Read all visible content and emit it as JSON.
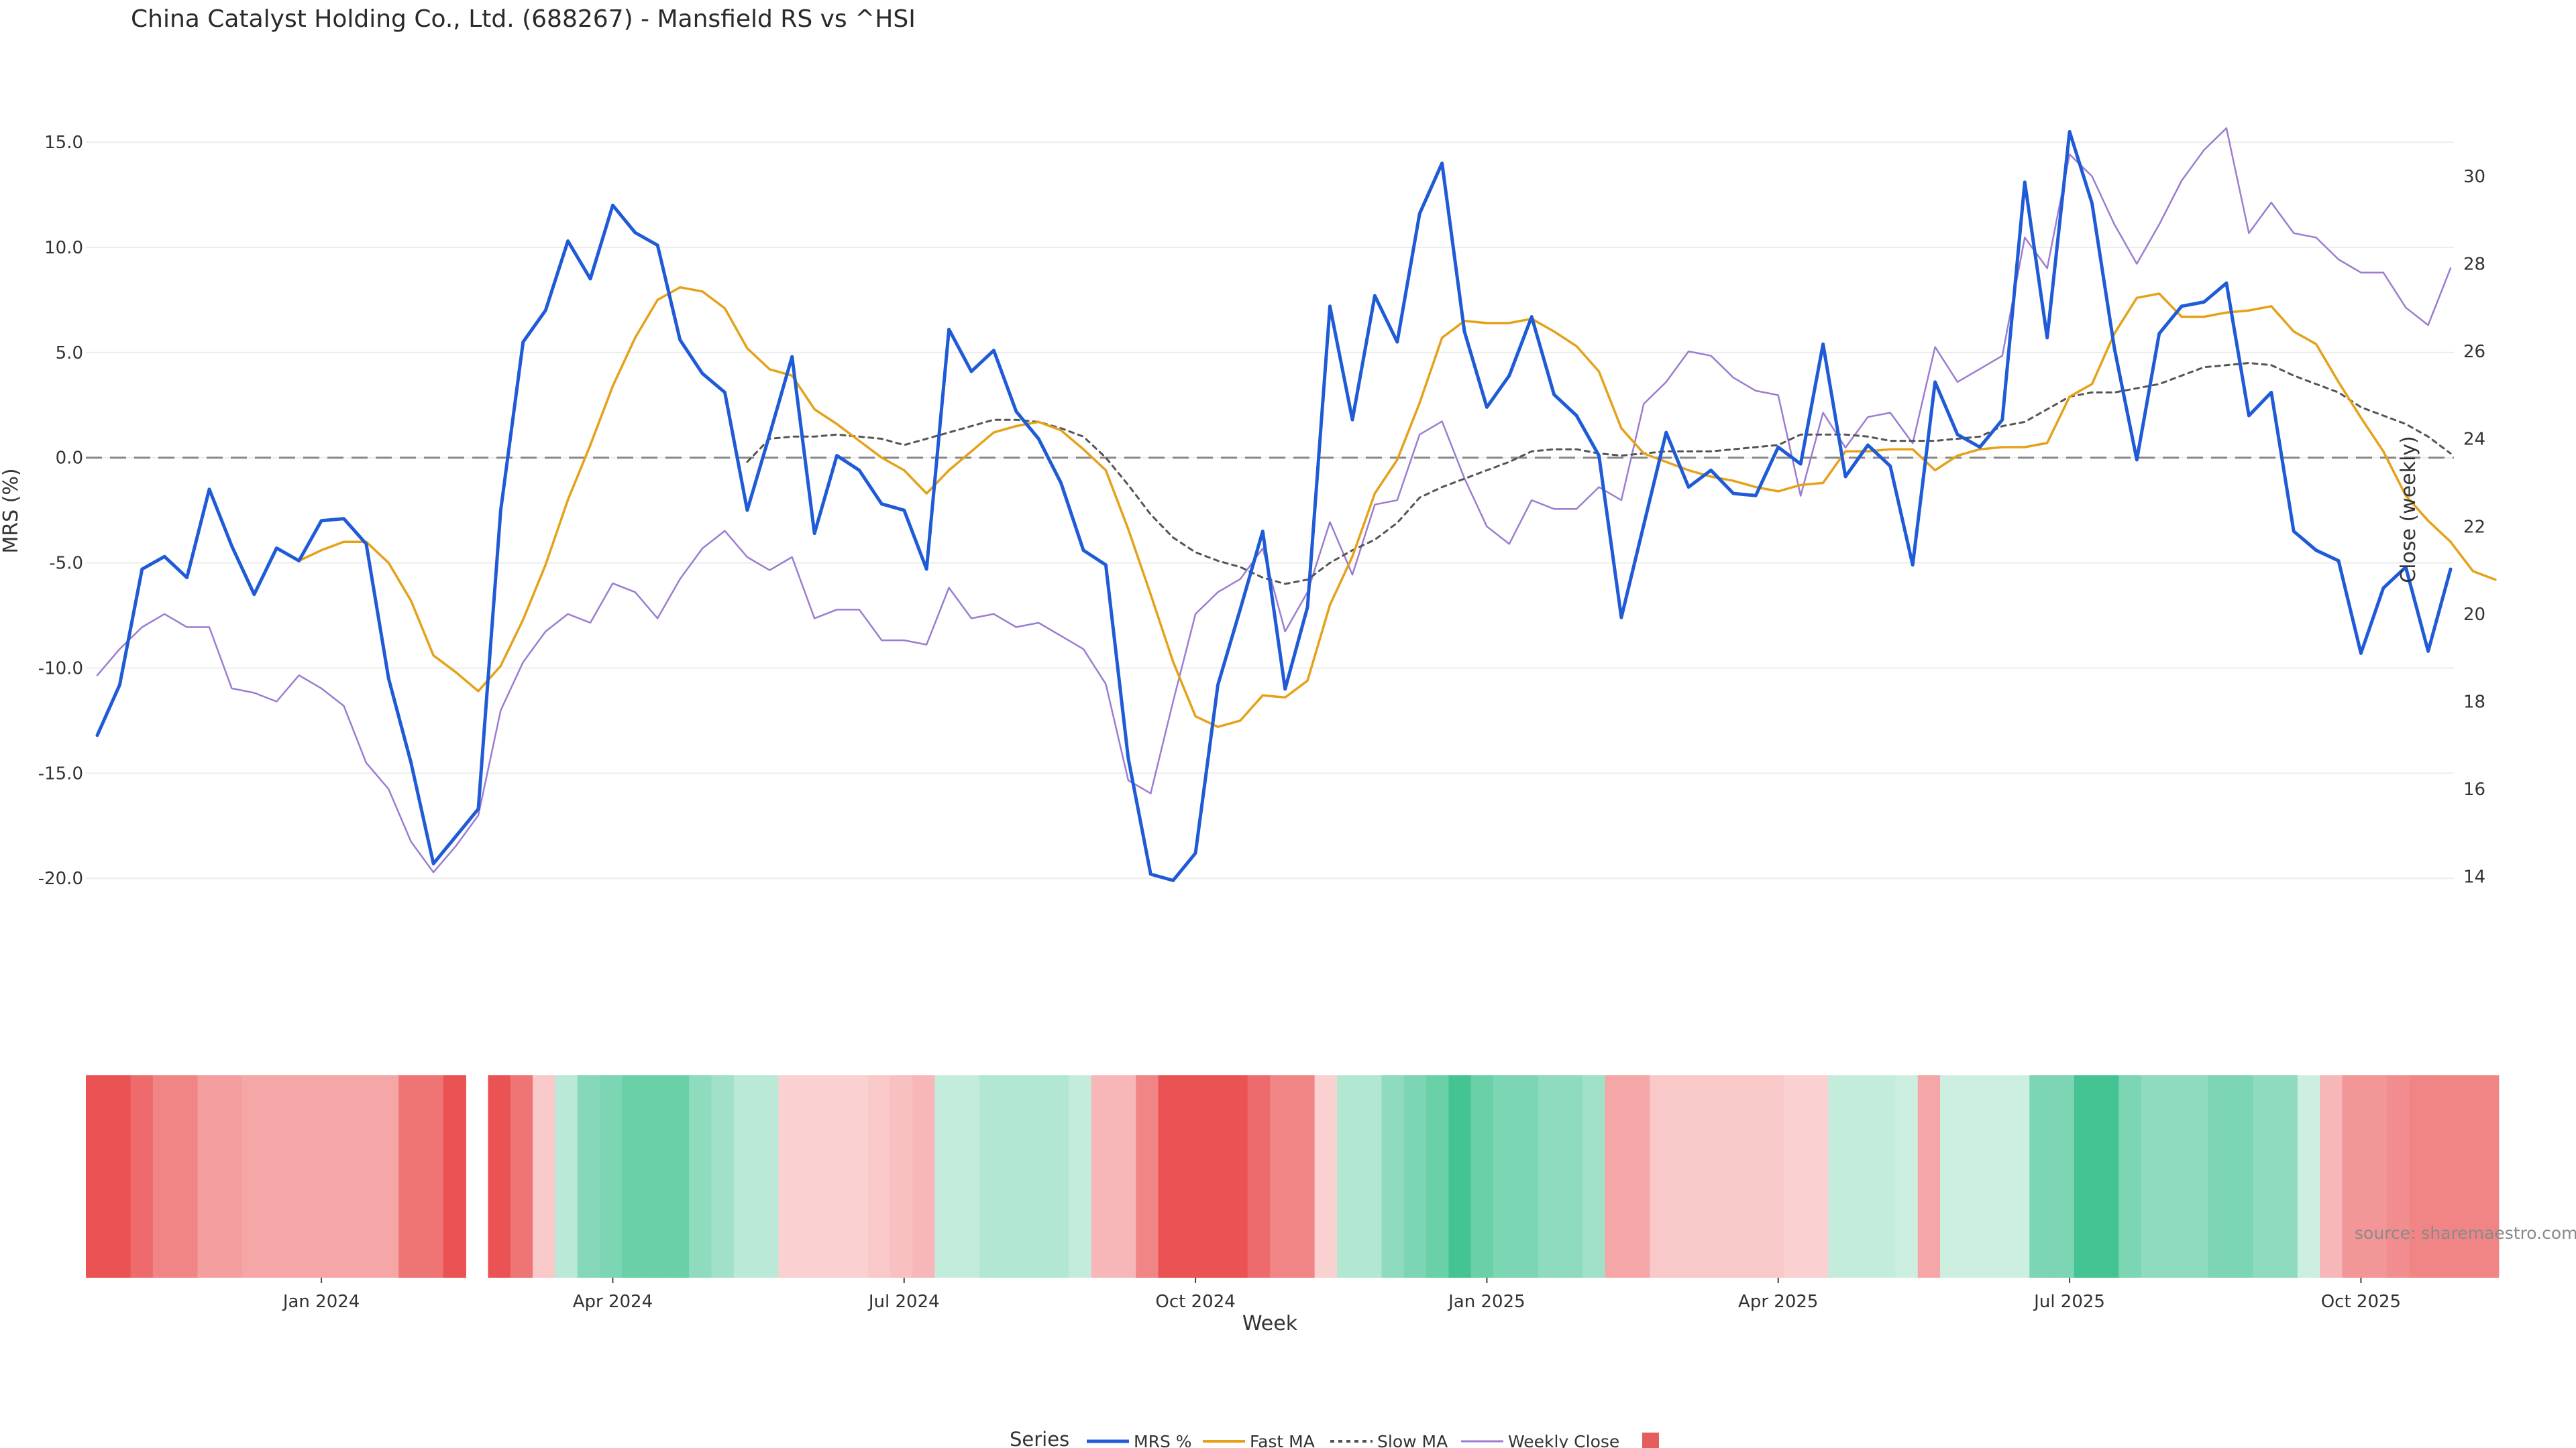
{
  "chart_data": {
    "type": "line",
    "title": "China Catalyst Holding Co., Ltd. (688267) - Mansfield RS vs ^HSI",
    "xlabel": "Week",
    "ylabel_left": "MRS (%)",
    "ylabel_right": "Close (weekly)",
    "ylim_left": [
      -22,
      16.5
    ],
    "ylim_right": [
      13,
      31.5
    ],
    "yticks_left": [
      "15.0",
      "10.0",
      "5.0",
      "0.0",
      "-5.0",
      "-10.0",
      "-15.0",
      "-20.0"
    ],
    "yticks_left_values": [
      15,
      10,
      5,
      0,
      -5,
      -10,
      -15,
      -20
    ],
    "yticks_right": [
      "30",
      "28",
      "26",
      "24",
      "22",
      "20",
      "18",
      "16",
      "14"
    ],
    "yticks_right_values": [
      30,
      28,
      26,
      24,
      22,
      20,
      18,
      16,
      14
    ],
    "xticks": [
      "Jan 2024",
      "Apr 2024",
      "Jul 2024",
      "Oct 2024",
      "Jan 2025",
      "Apr 2025",
      "Jul 2025",
      "Oct 2025"
    ],
    "xticks_week": [
      10,
      23,
      36,
      49,
      62,
      75,
      88,
      101
    ],
    "zero_line": 0,
    "series": [
      {
        "name": "MRS %",
        "color": "#1f5bd6",
        "axis": "left",
        "values": [
          -13.2,
          -10.8,
          -5.3,
          -4.7,
          -5.7,
          -1.5,
          -4.2,
          -6.5,
          -4.3,
          -4.9,
          -3.0,
          -2.9,
          -4.1,
          -10.5,
          -14.5,
          -19.3,
          -18.0,
          -16.7,
          -2.5,
          5.5,
          7.0,
          10.3,
          8.5,
          12.0,
          10.7,
          10.1,
          5.6,
          4.0,
          3.1,
          -2.5,
          1.1,
          4.8,
          -3.6,
          0.1,
          -0.6,
          -2.2,
          -2.5,
          -5.3,
          6.1,
          4.1,
          5.1,
          2.2,
          0.9,
          -1.2,
          -4.4,
          -5.1,
          -14.3,
          -19.8,
          -20.1,
          -18.8,
          -10.8,
          -7.2,
          -3.5,
          -11.0,
          -7.1,
          7.2,
          1.8,
          7.7,
          5.5,
          11.6,
          14.0,
          6.0,
          2.4,
          3.9,
          6.7,
          3.0,
          2.0,
          0.1,
          -7.6,
          -3.2,
          1.2,
          -1.4,
          -0.6,
          -1.7,
          -1.8,
          0.5,
          -0.3,
          5.4,
          -0.9,
          0.6,
          -0.4,
          -5.1,
          3.6,
          1.1,
          0.5,
          1.8,
          13.1,
          5.7,
          15.5,
          12.1,
          5.2,
          -0.1,
          5.9,
          7.2,
          7.4,
          8.3,
          2.0,
          3.1,
          -3.5,
          -4.4,
          -4.9,
          -9.3,
          -6.2,
          -5.2,
          -9.2,
          -5.3
        ]
      },
      {
        "name": "Fast MA",
        "color": "#e5a11a",
        "axis": "left",
        "start_week": 9,
        "values": [
          -4.9,
          -4.4,
          -4.0,
          -4.0,
          -5.0,
          -6.8,
          -9.4,
          -10.2,
          -11.1,
          -9.9,
          -7.7,
          -5.1,
          -2.0,
          0.6,
          3.4,
          5.7,
          7.5,
          8.1,
          7.9,
          7.1,
          5.2,
          4.2,
          3.9,
          2.3,
          1.6,
          0.8,
          0.0,
          -0.6,
          -1.7,
          -0.6,
          0.3,
          1.2,
          1.5,
          1.7,
          1.3,
          0.4,
          -0.6,
          -3.4,
          -6.5,
          -9.7,
          -12.3,
          -12.8,
          -12.5,
          -11.3,
          -11.4,
          -10.6,
          -7.0,
          -4.7,
          -1.7,
          -0.1,
          2.6,
          5.7,
          6.5,
          6.4,
          6.4,
          6.6,
          6.0,
          5.3,
          4.1,
          1.4,
          0.2,
          -0.2,
          -0.6,
          -0.9,
          -1.1,
          -1.4,
          -1.6,
          -1.3,
          -1.2,
          0.3,
          0.3,
          0.4,
          0.4,
          -0.6,
          0.1,
          0.4,
          0.5,
          0.5,
          0.7,
          2.9,
          3.5,
          5.9,
          7.6,
          7.8,
          6.7,
          6.7,
          6.9,
          7.0,
          7.2,
          6.0,
          5.4,
          3.6,
          1.9,
          0.3,
          -1.8,
          -3.0,
          -4.0,
          -5.4,
          -5.8
        ]
      },
      {
        "name": "Slow MA",
        "color": "#555555",
        "axis": "left",
        "dash": true,
        "start_week": 29,
        "values": [
          -0.2,
          0.9,
          1.0,
          1.0,
          1.1,
          1.0,
          0.9,
          0.6,
          0.9,
          1.2,
          1.5,
          1.8,
          1.8,
          1.7,
          1.4,
          1.0,
          0.0,
          -1.3,
          -2.7,
          -3.8,
          -4.5,
          -4.9,
          -5.2,
          -5.7,
          -6.0,
          -5.8,
          -5.0,
          -4.4,
          -3.9,
          -3.1,
          -1.9,
          -1.4,
          -1.0,
          -0.6,
          -0.2,
          0.3,
          0.4,
          0.4,
          0.2,
          0.1,
          0.2,
          0.3,
          0.3,
          0.3,
          0.4,
          0.5,
          0.6,
          1.1,
          1.1,
          1.1,
          1.0,
          0.8,
          0.8,
          0.8,
          0.9,
          1.0,
          1.5,
          1.7,
          2.3,
          2.9,
          3.1,
          3.1,
          3.3,
          3.5,
          3.9,
          4.3,
          4.4,
          4.5,
          4.4,
          3.9,
          3.5,
          3.1,
          2.4,
          2.0,
          1.6,
          1.0,
          0.2
        ]
      },
      {
        "name": "Weekly Close",
        "color": "#9b7dd1",
        "axis": "right",
        "values": [
          18.6,
          19.2,
          19.7,
          20.0,
          19.7,
          19.7,
          18.3,
          18.2,
          18.0,
          18.6,
          18.3,
          17.9,
          16.6,
          16.0,
          14.8,
          14.1,
          14.7,
          15.4,
          17.8,
          18.9,
          19.6,
          20.0,
          19.8,
          20.7,
          20.5,
          19.9,
          20.8,
          21.5,
          21.9,
          21.3,
          21.0,
          21.3,
          19.9,
          20.1,
          20.1,
          19.4,
          19.4,
          19.3,
          20.6,
          19.9,
          20.0,
          19.7,
          19.8,
          19.5,
          19.2,
          18.4,
          16.2,
          15.9,
          18.0,
          20.0,
          20.5,
          20.8,
          21.5,
          19.6,
          20.5,
          22.1,
          20.9,
          22.5,
          22.6,
          24.1,
          24.4,
          23.1,
          22.0,
          21.6,
          22.6,
          22.4,
          22.4,
          22.9,
          22.6,
          24.8,
          25.3,
          26.0,
          25.9,
          25.4,
          25.1,
          25.0,
          22.7,
          24.6,
          23.8,
          24.5,
          24.6,
          23.9,
          26.1,
          25.3,
          25.6,
          25.9,
          28.6,
          27.9,
          30.5,
          30.0,
          28.9,
          28.0,
          28.9,
          29.9,
          30.6,
          31.1,
          28.7,
          29.4,
          28.7,
          28.6,
          28.1,
          27.8,
          27.8,
          27.0,
          26.6,
          27.9
        ]
      }
    ],
    "heatmap_strip": {
      "title": "",
      "weeks": 106,
      "gap_week": 16,
      "values": [
        -18,
        -18,
        -15,
        -12,
        -12,
        -9,
        -9,
        -8,
        -8,
        -8,
        -8,
        -8,
        -8,
        -8,
        -14,
        -14,
        -18,
        null,
        -18,
        -14,
        -4,
        5,
        11,
        12,
        14,
        14,
        14,
        10,
        8,
        5,
        5,
        -3,
        -3,
        -3,
        -3,
        -4,
        -5,
        -6,
        4,
        4,
        6,
        6,
        6,
        6,
        4,
        -6,
        -6,
        -12,
        -18,
        -18,
        -18,
        -18,
        -15,
        -12,
        -12,
        -3,
        6,
        6,
        10,
        12,
        14,
        18,
        14,
        12,
        12,
        10,
        10,
        8,
        -8,
        -8,
        -4,
        -4,
        -4,
        -4,
        -4,
        -4,
        -3,
        -3,
        4,
        4,
        4,
        3,
        -8,
        3,
        3,
        3,
        3,
        12,
        12,
        18,
        18,
        12,
        10,
        10,
        10,
        12,
        12,
        10,
        10,
        3,
        -6,
        -10,
        -10,
        -11,
        -12,
        -12,
        -12,
        -12
      ]
    },
    "legend_title": "Series",
    "legend": [
      "MRS %",
      "Fast MA",
      "Slow MA",
      "Weekly Close",
      ""
    ],
    "annotation": "source: sharemaestro.com"
  }
}
